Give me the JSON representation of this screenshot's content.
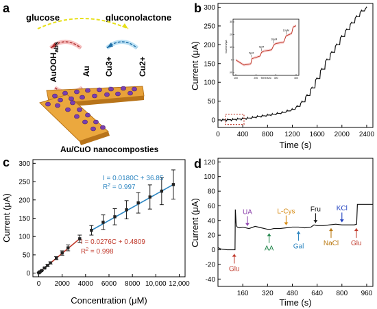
{
  "panel_a": {
    "letter": "a",
    "glucose": "glucose",
    "gluconolactone": "gluconolactone",
    "auooh": "AuOOH",
    "auooh_sub": "abs",
    "au": "Au",
    "cu3": "Cu3+",
    "cu2": "Cu2+",
    "caption": "Au/CuO nanocomposties"
  },
  "chart_data": [
    {
      "panel": "b",
      "type": "line",
      "xlabel": "Time (s)",
      "ylabel": "Current (μA)",
      "xlim": [
        0,
        2500
      ],
      "ylim": [
        -20,
        310
      ],
      "xticks": [
        0,
        400,
        800,
        1200,
        1600,
        2000,
        2400
      ],
      "yticks": [
        0,
        50,
        100,
        150,
        200,
        250,
        300
      ],
      "series": [
        {
          "x": [
            0,
            80,
            160,
            240,
            320,
            400,
            480,
            560,
            640,
            720,
            800,
            880,
            960,
            1040,
            1120,
            1200,
            1280,
            1360,
            1440,
            1520,
            1600,
            1680,
            1760,
            1840,
            1920,
            2000,
            2080,
            2160,
            2240,
            2320,
            2400
          ],
          "y": [
            0,
            0.3,
            0.8,
            1.5,
            2.5,
            3.5,
            5,
            7,
            9,
            11,
            13,
            15,
            17.5,
            20,
            24,
            28,
            36,
            48,
            65,
            85,
            110,
            135,
            160,
            180,
            200,
            222,
            240,
            258,
            275,
            290,
            298
          ]
        }
      ],
      "highlight_box": {
        "x": [
          120,
          420
        ],
        "y": [
          -12,
          15
        ]
      },
      "inset": {
        "type": "line",
        "xlabel": "Time/sec",
        "ylabel": "Current/μA",
        "xlim": [
          100,
          400
        ],
        "ylim": [
          -10,
          30
        ],
        "xticks": [
          100,
          200,
          300,
          400
        ],
        "yticks": [
          -10,
          0,
          10,
          20,
          30
        ],
        "annotations": [
          "5μM",
          "5μM",
          "10μM",
          "10μM"
        ],
        "series": [
          {
            "x": [
              100,
              120,
              140,
              160,
              175,
              180,
              200,
              220,
              228,
              240,
              260,
              278,
              290,
              300,
              320,
              338,
              350,
              365,
              378,
              385,
              400
            ],
            "y": [
              0,
              -2,
              -4,
              -3.5,
              -3,
              1,
              2,
              3,
              6,
              7,
              7.5,
              8,
              12,
              13,
              13.5,
              14,
              19,
              20,
              21,
              26,
              27
            ]
          }
        ]
      }
    },
    {
      "panel": "c",
      "type": "scatter",
      "xlabel": "Concentration (μM)",
      "ylabel": "Current (μA)",
      "xlim": [
        -500,
        12500
      ],
      "ylim": [
        -10,
        310
      ],
      "xticks": [
        0,
        2000,
        4000,
        6000,
        8000,
        10000,
        12000
      ],
      "xticklabels": [
        "0",
        "2000",
        "4000",
        "6000",
        "8000",
        "10,000",
        "12,000"
      ],
      "yticks": [
        0,
        50,
        100,
        150,
        200,
        250,
        300
      ],
      "series": [
        {
          "color": "#c0392b",
          "x": [
            5,
            50,
            100,
            250,
            500,
            750,
            1000,
            1500,
            2000,
            2500,
            3500
          ],
          "y": [
            1,
            2,
            3.5,
            7,
            14,
            21,
            28,
            41,
            55,
            69,
            94
          ],
          "err": [
            0.5,
            0.5,
            1,
            1,
            2,
            2,
            3,
            4,
            6,
            8,
            10
          ],
          "fit": "I = 0.0276C + 0.4809",
          "r2": "R2 = 0.998"
        },
        {
          "color": "#2e86c1",
          "x": [
            4500,
            5500,
            6500,
            7500,
            8500,
            9500,
            10500,
            11500
          ],
          "y": [
            117,
            139,
            154,
            173,
            192,
            208,
            224,
            242
          ],
          "err": [
            13,
            20,
            22,
            25,
            28,
            33,
            37,
            40
          ],
          "fit": "I = 0.0180C + 36.85",
          "r2": "R2 = 0.997"
        }
      ]
    },
    {
      "panel": "d",
      "type": "line",
      "xlabel": "Time (s)",
      "ylabel": "Current (μA)",
      "xlim": [
        0,
        1000
      ],
      "ylim": [
        -50,
        125
      ],
      "xticks": [
        160,
        320,
        480,
        640,
        800,
        960
      ],
      "yticks": [
        -40,
        -20,
        0,
        20,
        40,
        60,
        80,
        100,
        120
      ],
      "series": [
        {
          "x": [
            0,
            20,
            60,
            100,
            110,
            112,
            118,
            125,
            140,
            160,
            200,
            240,
            280,
            320,
            340,
            360,
            400,
            440,
            480,
            520,
            560,
            600,
            620,
            640,
            680,
            720,
            760,
            800,
            840,
            880,
            895,
            900,
            905,
            940,
            1000
          ],
          "y": [
            3,
            1,
            0,
            0,
            0,
            55,
            33,
            31,
            30,
            31,
            29,
            32,
            30,
            28,
            28,
            29,
            29,
            30,
            31,
            31,
            30,
            31,
            34,
            33,
            33,
            34,
            35,
            34,
            34,
            34,
            35,
            62,
            62,
            62,
            62
          ]
        }
      ],
      "annotations": [
        {
          "label": "Glu",
          "x": 105,
          "direction": "up",
          "color": "#c0392b"
        },
        {
          "label": "UA",
          "x": 190,
          "direction": "down",
          "color": "#8e44ad"
        },
        {
          "label": "AA",
          "x": 330,
          "direction": "up",
          "color": "#1e8449"
        },
        {
          "label": "L-Cys",
          "x": 440,
          "direction": "down",
          "color": "#d68910"
        },
        {
          "label": "Gal",
          "x": 520,
          "direction": "up",
          "color": "#2e86c1"
        },
        {
          "label": "Fru",
          "x": 630,
          "direction": "down",
          "color": "#111111"
        },
        {
          "label": "NaCl",
          "x": 730,
          "direction": "up",
          "color": "#b9770e"
        },
        {
          "label": "KCl",
          "x": 800,
          "direction": "down",
          "color": "#1f3fbf"
        },
        {
          "label": "Glu",
          "x": 893,
          "direction": "up",
          "color": "#c0392b"
        }
      ]
    }
  ]
}
